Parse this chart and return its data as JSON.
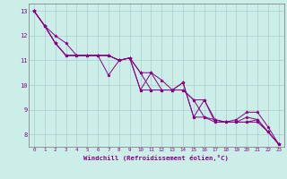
{
  "background_color": "#cceee8",
  "line_color": "#880088",
  "grid_color": "#aacccc",
  "axis_color": "#888888",
  "xlabel": "Windchill (Refroidissement éolien,°C)",
  "xlabel_color": "#880088",
  "tick_color": "#880088",
  "ylim": [
    7.5,
    13.3
  ],
  "xlim": [
    -0.5,
    23.5
  ],
  "yticks": [
    8,
    9,
    10,
    11,
    12,
    13
  ],
  "xticks": [
    0,
    1,
    2,
    3,
    4,
    5,
    6,
    7,
    8,
    9,
    10,
    11,
    12,
    13,
    14,
    15,
    16,
    17,
    18,
    19,
    20,
    21,
    22,
    23
  ],
  "series": [
    [
      13.0,
      12.4,
      12.0,
      11.7,
      11.2,
      11.2,
      11.2,
      10.4,
      11.0,
      11.1,
      9.8,
      10.5,
      10.2,
      9.8,
      10.1,
      8.7,
      9.4,
      8.6,
      8.5,
      8.6,
      8.9,
      8.9,
      8.3,
      7.6
    ],
    [
      13.0,
      12.4,
      11.7,
      11.2,
      11.2,
      11.2,
      11.2,
      11.2,
      11.0,
      11.1,
      9.8,
      9.8,
      9.8,
      9.8,
      10.1,
      8.7,
      8.7,
      8.6,
      8.5,
      8.5,
      8.7,
      8.6,
      8.1,
      7.6
    ],
    [
      13.0,
      12.4,
      11.7,
      11.2,
      11.2,
      11.2,
      11.2,
      11.2,
      11.0,
      11.1,
      10.5,
      9.8,
      9.8,
      9.8,
      9.8,
      9.4,
      8.7,
      8.5,
      8.5,
      8.5,
      8.5,
      8.6,
      8.1,
      7.6
    ],
    [
      13.0,
      12.4,
      11.7,
      11.2,
      11.2,
      11.2,
      11.2,
      11.2,
      11.0,
      11.1,
      10.5,
      10.5,
      9.8,
      9.8,
      9.8,
      9.4,
      9.4,
      8.5,
      8.5,
      8.5,
      8.5,
      8.5,
      8.1,
      7.6
    ]
  ]
}
